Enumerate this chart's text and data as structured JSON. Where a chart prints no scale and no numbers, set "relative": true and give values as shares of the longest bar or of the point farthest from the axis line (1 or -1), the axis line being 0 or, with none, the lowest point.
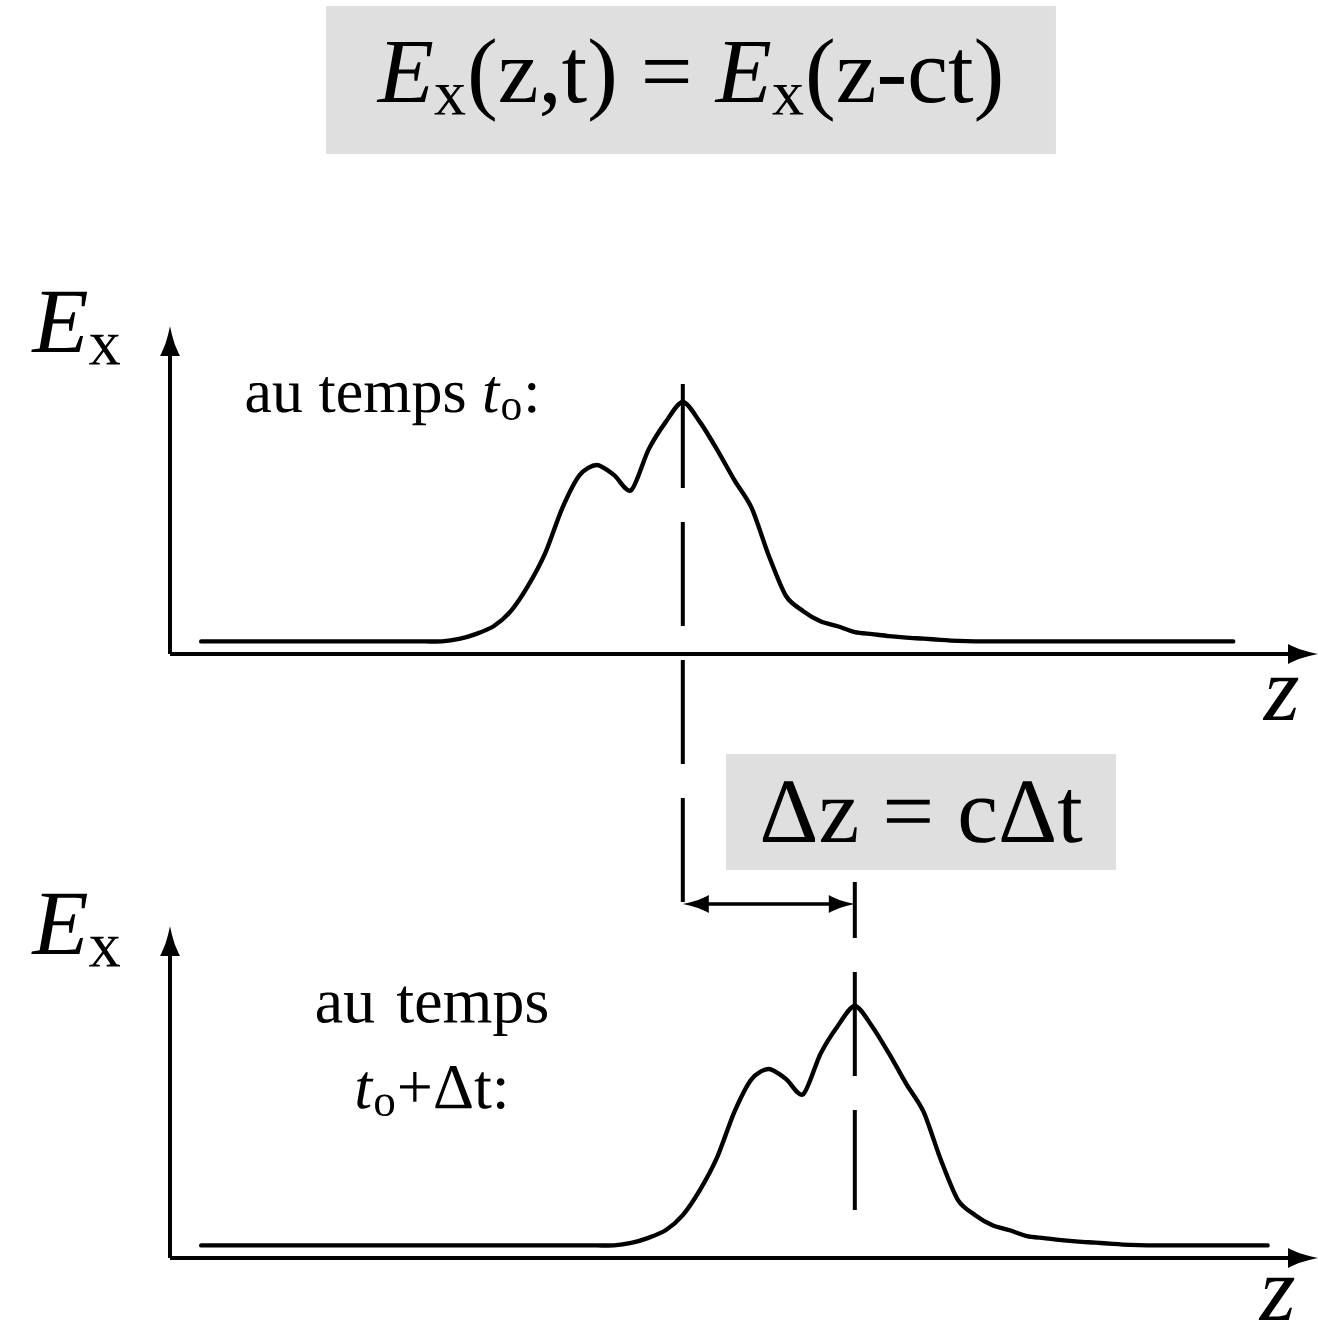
{
  "chart_data": [
    {
      "type": "line",
      "title": "*E*$_{x}$(z,t) = *E*$_{x}$(z-ct)",
      "xlabel": "z",
      "ylabel": "*E*$_{x}$",
      "relative": true,
      "categories": [
        null,
        null,
        null,
        null,
        null,
        null,
        null,
        null,
        null,
        null,
        null,
        null,
        null,
        null,
        null,
        null,
        null,
        null,
        null,
        null,
        null,
        null,
        null,
        null,
        null,
        null,
        null,
        null,
        null,
        null,
        null,
        null,
        null,
        null,
        null,
        null,
        null,
        null,
        null,
        null,
        null,
        null,
        null,
        null,
        null,
        null,
        null,
        null,
        null,
        null,
        null,
        null,
        null,
        null,
        null,
        null,
        null,
        null,
        null,
        null,
        null,
        null,
        null,
        null
      ],
      "values": [
        0.05,
        0.05,
        0.05,
        0.05,
        0.05,
        0.05,
        0.05,
        0.05,
        0.05,
        0.05,
        0.05,
        0.05,
        0.05,
        0.05,
        0.05,
        0.06,
        0.08,
        0.11,
        0.17,
        0.27,
        0.4,
        0.58,
        0.71,
        0.75,
        0.71,
        0.65,
        0.81,
        0.92,
        1.0,
        0.92,
        0.81,
        0.69,
        0.58,
        0.39,
        0.23,
        0.17,
        0.13,
        0.11,
        0.087,
        0.079,
        0.071,
        0.065,
        0.061,
        0.056,
        0.052,
        0.05,
        0.05,
        0.05,
        0.05,
        0.05,
        0.05,
        0.05,
        0.05,
        0.05,
        0.05,
        0.05,
        0.05,
        0.05,
        0.05,
        0.05,
        0.05,
        null,
        null,
        null
      ],
      "color": "#000000",
      "annotations": [
        "au temps *t*$_{o}$:"
      ]
    },
    {
      "type": "line",
      "xlabel": "z",
      "ylabel": "*E*$_{x}$",
      "relative": true,
      "categories": [
        null,
        null,
        null,
        null,
        null,
        null,
        null,
        null,
        null,
        null,
        null,
        null,
        null,
        null,
        null,
        null,
        null,
        null,
        null,
        null,
        null,
        null,
        null,
        null,
        null,
        null,
        null,
        null,
        null,
        null,
        null,
        null,
        null,
        null,
        null,
        null,
        null,
        null,
        null,
        null,
        null,
        null,
        null,
        null,
        null,
        null,
        null,
        null,
        null,
        null,
        null,
        null,
        null,
        null,
        null,
        null,
        null,
        null,
        null,
        null,
        null,
        null,
        null,
        null
      ],
      "values": [
        0.05,
        0.05,
        0.05,
        0.05,
        0.05,
        0.05,
        0.05,
        0.05,
        0.05,
        0.05,
        0.05,
        0.05,
        0.05,
        0.05,
        0.05,
        0.05,
        0.05,
        0.05,
        0.05,
        0.05,
        0.05,
        0.05,
        0.05,
        0.05,
        0.05,
        0.06,
        0.08,
        0.11,
        0.17,
        0.27,
        0.4,
        0.58,
        0.71,
        0.75,
        0.71,
        0.65,
        0.81,
        0.92,
        1.0,
        0.92,
        0.81,
        0.69,
        0.58,
        0.39,
        0.23,
        0.17,
        0.13,
        0.11,
        0.087,
        0.079,
        0.071,
        0.065,
        0.061,
        0.056,
        0.052,
        0.05,
        0.05,
        0.05,
        0.05,
        0.05,
        0.05,
        0.05,
        0.05,
        null
      ],
      "color": "#000000",
      "annotations": [
        "au temps *t*$_{o}$+Δt:",
        "Δz = cΔt"
      ]
    }
  ]
}
